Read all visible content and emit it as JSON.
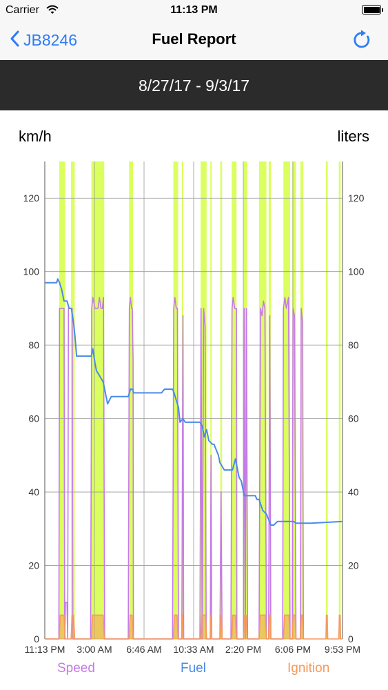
{
  "status_bar": {
    "carrier": "Carrier",
    "time": "11:13 PM"
  },
  "nav": {
    "back_label": "JB8246",
    "title": "Fuel Report"
  },
  "date_range": "8/27/17 - 9/3/17",
  "units": {
    "left": "km/h",
    "right": "liters"
  },
  "legend": {
    "speed": "Speed",
    "fuel": "Fuel",
    "ignition": "Ignition"
  },
  "colors": {
    "speed": "#c67ae8",
    "fuel": "#4a8ae8",
    "ignition": "#f59a5c",
    "ignition_band": "#dbff5e",
    "accent": "#2d7cf6"
  },
  "chart_data": {
    "type": "line",
    "title": "",
    "ylabel_left": "km/h",
    "ylabel_right": "liters",
    "ylim": [
      0,
      130
    ],
    "y_ticks": [
      0,
      20,
      40,
      60,
      80,
      100,
      120
    ],
    "x_tick_labels": [
      "11:13 PM",
      "3:00 AM",
      "6:46 AM",
      "10:33 AM",
      "2:20 PM",
      "6:06 PM",
      "9:53 PM"
    ],
    "x_domain_hours": [
      0,
      26.67
    ],
    "ignition_on_intervals": [
      [
        1.95,
        2.75
      ],
      [
        3.55,
        4.05
      ],
      [
        6.3,
        8.05
      ],
      [
        11.4,
        11.95
      ],
      [
        17.4,
        18.05
      ],
      [
        18.55,
        18.75
      ],
      [
        21.1,
        21.9
      ],
      [
        22.4,
        22.6
      ],
      [
        23.75,
        24.0
      ],
      [
        25.3,
        25.95
      ],
      [
        26.9,
        27.4
      ],
      [
        29.0,
        30.0
      ],
      [
        30.3,
        30.6
      ],
      [
        32.3,
        33.2
      ],
      [
        33.5,
        34.0
      ],
      [
        34.6,
        35.0
      ],
      [
        38.05,
        38.3
      ],
      [
        39.8,
        40.05
      ]
    ],
    "series": [
      {
        "name": "Speed",
        "x": [
          0,
          1.9,
          2.0,
          2.1,
          2.2,
          2.3,
          2.5,
          2.6,
          2.7,
          2.8,
          3.0,
          3.1,
          3.2,
          3.3,
          3.4,
          3.5,
          3.6,
          3.7,
          3.8,
          4.0,
          4.1,
          6.2,
          6.35,
          6.5,
          6.8,
          7.0,
          7.2,
          7.4,
          7.6,
          7.8,
          7.95,
          8.1,
          11.3,
          11.45,
          11.6,
          11.75,
          11.85,
          11.95,
          12.0,
          17.3,
          17.45,
          17.6,
          17.8,
          17.95,
          18.1,
          18.55,
          18.7,
          18.8,
          21.0,
          21.15,
          21.3,
          21.5,
          21.7,
          21.85,
          22.0,
          22.4,
          22.5,
          22.6,
          23.7,
          23.85,
          24.0,
          25.2,
          25.35,
          25.5,
          25.7,
          25.95,
          26.0,
          26.9,
          27.0,
          27.15,
          27.3,
          27.45,
          29.0,
          29.2,
          29.4,
          29.6,
          29.8,
          30.0,
          30.3,
          30.45,
          30.6,
          32.2,
          32.3,
          32.5,
          32.7,
          33.0,
          33.2,
          33.5,
          33.6,
          33.8,
          34.0,
          34.6,
          34.7,
          34.9,
          35.0
        ],
        "values": [
          0,
          0,
          90,
          90,
          90,
          90,
          90,
          90,
          0,
          10,
          10,
          0,
          90,
          90,
          90,
          90,
          90,
          90,
          0,
          0,
          0,
          0,
          90,
          93,
          90,
          90,
          90,
          93,
          90,
          90,
          93,
          0,
          0,
          90,
          93,
          90,
          90,
          76,
          0,
          0,
          90,
          93,
          90,
          90,
          0,
          0,
          88,
          0,
          0,
          90,
          0,
          90,
          85,
          0,
          0,
          0,
          50,
          0,
          0,
          40,
          0,
          0,
          90,
          93,
          90,
          90,
          0,
          0,
          90,
          0,
          90,
          0,
          0,
          90,
          88,
          92,
          90,
          0,
          0,
          88,
          0,
          0,
          90,
          93,
          90,
          93,
          0,
          0,
          90,
          88,
          0,
          0,
          90,
          86,
          0
        ]
      },
      {
        "name": "Fuel",
        "x": [
          0,
          1.5,
          1.6,
          1.75,
          2.0,
          2.3,
          2.6,
          3.0,
          3.3,
          3.6,
          3.9,
          4.1,
          4.3,
          6.3,
          6.5,
          6.8,
          7.0,
          7.3,
          7.6,
          7.9,
          8.0,
          8.2,
          8.5,
          9.0,
          11.3,
          11.6,
          11.9,
          12.0,
          15.8,
          16.2,
          17.3,
          17.5,
          17.8,
          18.1,
          18.3,
          18.7,
          19.0,
          20.5,
          20.8,
          21.0,
          21.3,
          21.6,
          21.9,
          22.2,
          22.7,
          22.9,
          23.5,
          23.7,
          24.0,
          24.3,
          24.6,
          25.0,
          25.4,
          25.8,
          26.1,
          26.3,
          26.6,
          27.0,
          27.4,
          28.5,
          28.7,
          29.0,
          29.5,
          30.0,
          30.6,
          31.0,
          31.5,
          32.1,
          32.4,
          32.7,
          33.0,
          33.4,
          33.7,
          34.0,
          34.5,
          35.0,
          35.2,
          35.5,
          35.8,
          36.0,
          40.3
        ],
        "values": [
          97,
          97,
          97,
          98,
          97,
          95,
          92,
          92,
          90,
          90,
          86,
          82,
          77,
          77,
          79,
          75,
          73,
          72,
          71,
          70,
          69,
          67,
          64,
          66,
          66,
          68,
          68,
          67,
          67,
          68,
          68,
          67,
          65,
          63,
          59,
          60,
          59,
          59,
          59,
          59,
          58,
          55,
          57,
          54,
          53,
          53,
          50,
          48,
          47,
          46,
          46,
          46,
          46,
          49,
          46,
          44,
          43,
          39,
          39,
          39,
          38,
          38,
          35,
          34,
          31,
          31,
          32,
          32,
          32,
          32,
          32,
          32,
          32,
          31.5,
          31.5,
          31.5,
          31.5,
          31.5,
          31.5,
          31.5,
          32
        ]
      },
      {
        "name": "Ignition",
        "x": [
          0,
          1.95,
          2.1,
          2.6,
          2.75,
          3.55,
          3.7,
          3.9,
          4.05,
          6.3,
          6.45,
          7.9,
          8.05,
          11.4,
          11.55,
          11.8,
          11.95,
          17.4,
          17.55,
          17.9,
          18.05,
          18.55,
          18.62,
          18.68,
          18.75,
          21.1,
          21.25,
          21.75,
          21.9,
          22.4,
          22.47,
          22.53,
          22.6,
          23.75,
          23.82,
          23.93,
          24.0,
          25.3,
          25.45,
          25.8,
          25.95,
          26.9,
          27.05,
          27.25,
          27.4,
          29.0,
          29.15,
          29.85,
          30.0,
          30.3,
          30.38,
          30.52,
          30.6,
          32.3,
          32.45,
          33.05,
          33.2,
          33.5,
          33.62,
          33.88,
          34.0,
          34.6,
          34.72,
          34.88,
          35.0,
          38.05,
          38.12,
          38.23,
          38.3,
          39.8,
          39.87,
          39.98,
          40.05,
          40.3
        ],
        "values": [
          0,
          0,
          6.5,
          6.5,
          0,
          0,
          6.5,
          6.5,
          0,
          0,
          6.5,
          6.5,
          0,
          0,
          6.5,
          6.5,
          0,
          0,
          6.5,
          6.5,
          0,
          0,
          6.5,
          6.5,
          0,
          0,
          6.5,
          6.5,
          0,
          0,
          6.5,
          6.5,
          0,
          0,
          6.5,
          6.5,
          0,
          0,
          6.5,
          6.5,
          0,
          0,
          6.5,
          6.5,
          0,
          0,
          6.5,
          6.5,
          0,
          0,
          6.5,
          6.5,
          0,
          0,
          6.5,
          6.5,
          0,
          0,
          6.5,
          6.5,
          0,
          0,
          6.5,
          6.5,
          0,
          0,
          6.5,
          6.5,
          0,
          0,
          6.5,
          6.5,
          0,
          0
        ]
      }
    ]
  }
}
